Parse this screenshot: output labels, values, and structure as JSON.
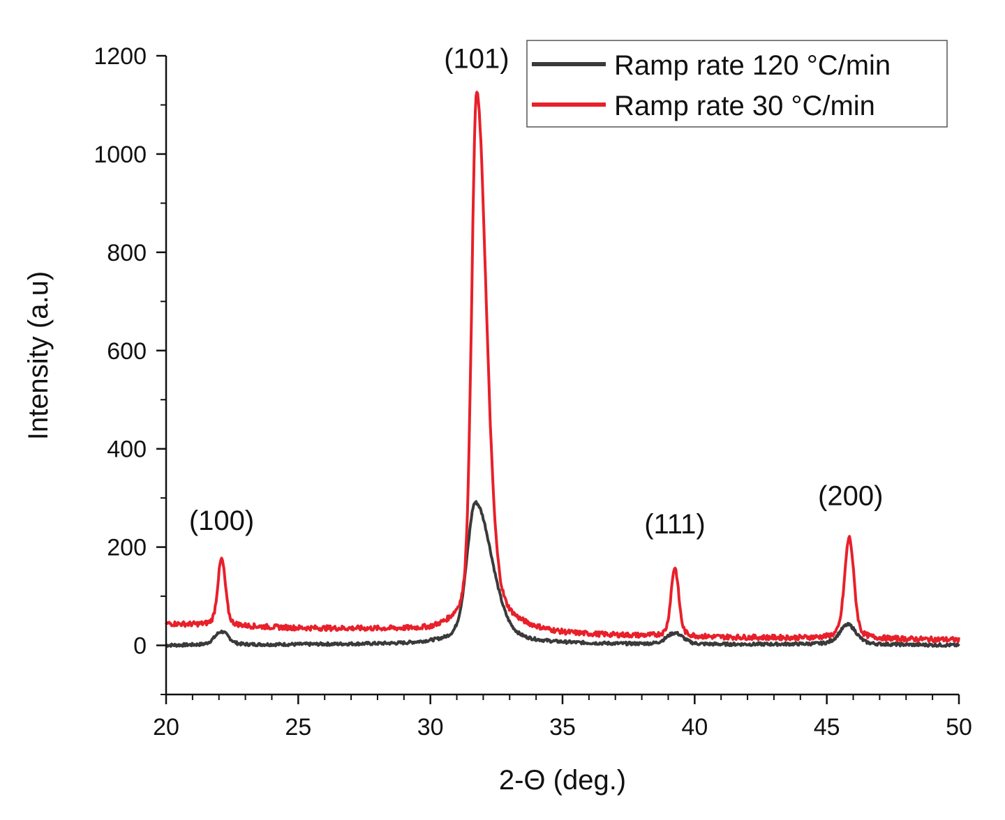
{
  "chart_data": {
    "type": "line",
    "xlabel": "2-Θ (deg.)",
    "ylabel": "Intensity (a.u)",
    "xlim": [
      20,
      50
    ],
    "ylim": [
      -100,
      1200
    ],
    "x_ticks": [
      20,
      25,
      30,
      35,
      40,
      45,
      50
    ],
    "y_ticks": [
      0,
      200,
      400,
      600,
      800,
      1000,
      1200
    ],
    "grid": false,
    "legend_position": "top-right",
    "series": [
      {
        "name": "Ramp rate 120 °C/min",
        "color": "#3a3a3a",
        "baseline": [
          [
            20,
            0
          ],
          [
            29,
            3
          ],
          [
            31,
            8
          ],
          [
            33,
            2
          ],
          [
            40,
            1
          ],
          [
            45,
            2
          ],
          [
            50,
            0
          ]
        ],
        "peaks": [
          {
            "center": 22.1,
            "height": 27,
            "width": 0.25
          },
          {
            "center": 31.7,
            "height": 285,
            "width": 0.3,
            "tail": 0.6
          },
          {
            "center": 39.25,
            "height": 23,
            "width": 0.3
          },
          {
            "center": 45.8,
            "height": 40,
            "width": 0.3
          }
        ]
      },
      {
        "name": "Ramp rate 30 °C/min",
        "color": "#e8202a",
        "baseline": [
          [
            20,
            44
          ],
          [
            22,
            40
          ],
          [
            25,
            35
          ],
          [
            30,
            32
          ],
          [
            31,
            40
          ],
          [
            33,
            28
          ],
          [
            35,
            20
          ],
          [
            40,
            16
          ],
          [
            45,
            14
          ],
          [
            50,
            11
          ]
        ],
        "peaks": [
          {
            "center": 22.1,
            "height": 135,
            "width": 0.14
          },
          {
            "center": 31.75,
            "height": 1090,
            "width": 0.18,
            "tail": 0.35
          },
          {
            "center": 39.25,
            "height": 140,
            "width": 0.14
          },
          {
            "center": 45.85,
            "height": 205,
            "width": 0.17
          }
        ]
      }
    ],
    "annotations": [
      {
        "text": "(100)",
        "x": 22.1,
        "y": 235
      },
      {
        "text": "(101)",
        "x": 31.75,
        "y": 1175
      },
      {
        "text": "(111)",
        "x": 39.25,
        "y": 228
      },
      {
        "text": "(200)",
        "x": 45.9,
        "y": 285
      }
    ]
  }
}
